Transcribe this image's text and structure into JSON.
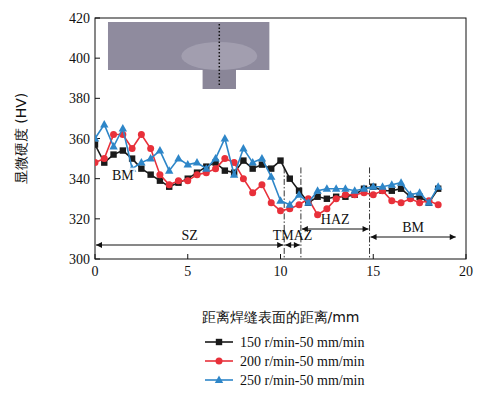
{
  "chart_data": {
    "type": "line",
    "x_label": "距离焊缝表面的距离/mm",
    "y_label": "显微硬度 (HV)",
    "xlim": [
      0,
      20
    ],
    "xticks": [
      0,
      5,
      10,
      15,
      20
    ],
    "ylim": [
      300,
      420
    ],
    "yticks": [
      300,
      320,
      340,
      360,
      380,
      400,
      420
    ],
    "legend": "bottom",
    "x": [
      0,
      0.5,
      1,
      1.5,
      2,
      2.5,
      3,
      3.5,
      4,
      4.5,
      5,
      5.5,
      6,
      6.5,
      7,
      7.5,
      8,
      8.5,
      9,
      9.5,
      10,
      10.5,
      11,
      11.5,
      12,
      12.5,
      13,
      13.5,
      14,
      14.5,
      15,
      15.5,
      16,
      16.5,
      17,
      17.5,
      18,
      18.5
    ],
    "series": [
      {
        "name": "150 r/min-50 mm/min",
        "color": "#1a1a1a",
        "marker": "square",
        "values": [
          357,
          348,
          352,
          354,
          350,
          345,
          342,
          339,
          336,
          338,
          340,
          343,
          346,
          348,
          344,
          343,
          349,
          345,
          347,
          345,
          349,
          340,
          334,
          328,
          331,
          330,
          331,
          331,
          332,
          335,
          336,
          334,
          334,
          335,
          331,
          331,
          328,
          335
        ]
      },
      {
        "name": "200 r/min-50 mm/min",
        "color": "#e8303a",
        "marker": "circle",
        "values": [
          348,
          350,
          362,
          362,
          355,
          362,
          355,
          342,
          337,
          339,
          339,
          342,
          343,
          345,
          350,
          348,
          340,
          333,
          337,
          328,
          324,
          325,
          327,
          330,
          322,
          325,
          330,
          332,
          332,
          333,
          332,
          334,
          329,
          328,
          330,
          328,
          329,
          327
        ]
      },
      {
        "name": "250 r/min-50 mm/min",
        "color": "#2e86c8",
        "marker": "triangle",
        "values": [
          360,
          367,
          356,
          365,
          345,
          348,
          350,
          354,
          344,
          350,
          347,
          348,
          345,
          350,
          360,
          342,
          355,
          348,
          350,
          341,
          329,
          327,
          332,
          328,
          334,
          335,
          335,
          335,
          334,
          335,
          336,
          336,
          337,
          338,
          332,
          333,
          328,
          336
        ]
      }
    ],
    "zones": [
      {
        "label": "SZ",
        "from": 0,
        "to": 10.2
      },
      {
        "label": "TMAZ",
        "from": 10.2,
        "to": 11.1
      },
      {
        "label": "HAZ",
        "from": 11.1,
        "to": 14.8
      },
      {
        "label": "BM",
        "from": 14.8,
        "to": 19.5
      }
    ],
    "annotations": [
      {
        "text": "BM",
        "x": 1.5,
        "y": 342
      }
    ]
  }
}
